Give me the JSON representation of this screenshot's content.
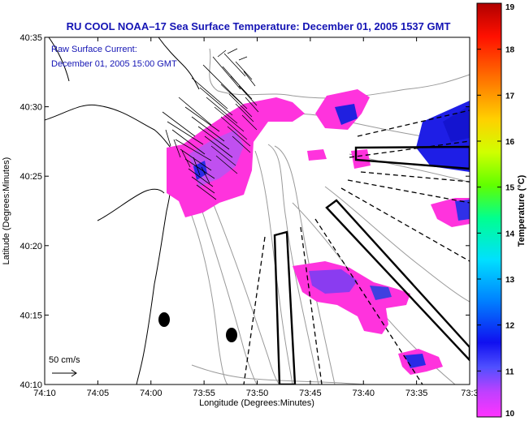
{
  "header": {
    "title": "RU COOL   NOAA–17  Sea Surface Temperature:  December 01, 2005 1537 GMT"
  },
  "inset": {
    "line1": "Raw Surface Current:",
    "line2": "December 01, 2005 15:00 GMT",
    "scale_label": "50 cm/s"
  },
  "axes": {
    "xlabel": "Longitude (Degrees:Minutes)",
    "ylabel": "Latitude (Degrees:Minutes)",
    "x_ticks": [
      "74:10",
      "74:05",
      "74:00",
      "73:55",
      "73:50",
      "73:45",
      "73:40",
      "73:35",
      "73:3"
    ],
    "y_ticks": [
      "40:35",
      "40:30",
      "40:25",
      "40:20",
      "40:15",
      "40:10"
    ]
  },
  "colorbar": {
    "label": "Temperature (°C)",
    "ticks": [
      "19",
      "18",
      "17",
      "16",
      "15",
      "14",
      "13",
      "12",
      "11",
      "10"
    ],
    "min": 10,
    "max": 19
  },
  "colors": {
    "title": "#1414b4",
    "sst_warm": "#ff33dd",
    "sst_mid": "#c050f0",
    "sst_cold": "#1e1ee6"
  }
}
